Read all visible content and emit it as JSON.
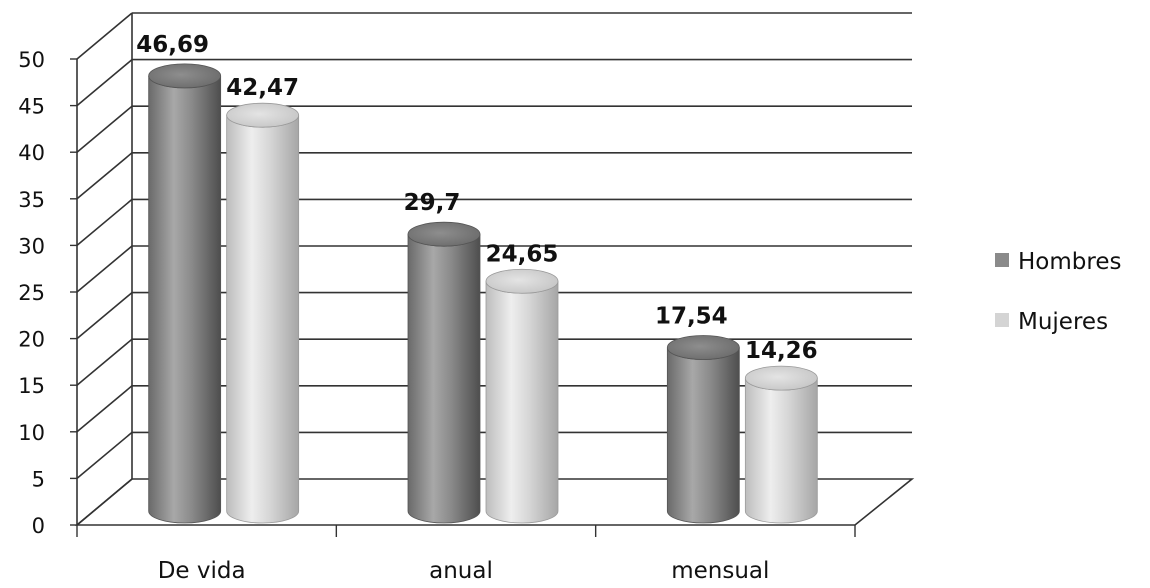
{
  "chart_data": {
    "type": "bar",
    "style": "3d-cylinder",
    "categories": [
      "De vida",
      "anual",
      "mensual"
    ],
    "series": [
      {
        "name": "Hombres",
        "values": [
          46.69,
          29.7,
          17.54
        ],
        "labels": [
          "46,69",
          "29,7",
          "17,54"
        ],
        "color": "#8a8a8a"
      },
      {
        "name": "Mujeres",
        "values": [
          42.47,
          24.65,
          14.26
        ],
        "labels": [
          "42,47",
          "24,65",
          "14,26"
        ],
        "color": "#d4d4d4"
      }
    ],
    "yticks": [
      "0",
      "5",
      "10",
      "15",
      "20",
      "25",
      "30",
      "35",
      "40",
      "45",
      "50"
    ],
    "ylim": [
      0,
      50
    ],
    "grid": true,
    "legend_position": "right"
  }
}
